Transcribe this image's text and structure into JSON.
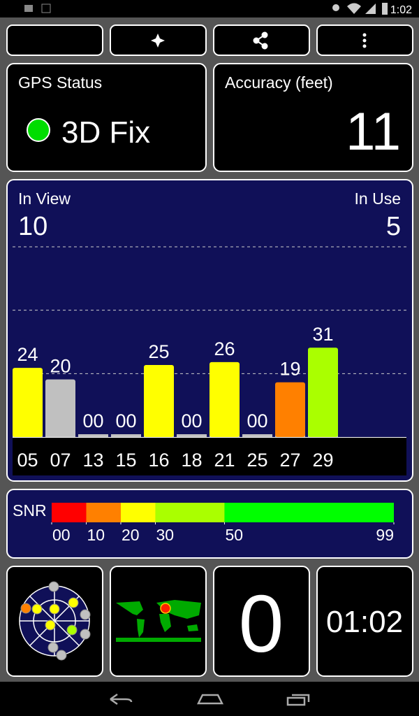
{
  "status_bar": {
    "time": "1:02"
  },
  "gps_status": {
    "title": "GPS Status",
    "value": "3D Fix"
  },
  "accuracy": {
    "title": "Accuracy (feet)",
    "value": "11"
  },
  "satellites": {
    "in_view_label": "In View",
    "in_view": "10",
    "in_use_label": "In Use",
    "in_use": "5",
    "ylim": [
      0,
      66
    ],
    "gridlines": [
      22,
      44,
      66
    ],
    "prns": [
      "05",
      "07",
      "13",
      "15",
      "16",
      "18",
      "21",
      "25",
      "27",
      "29"
    ],
    "values": [
      24,
      20,
      0,
      0,
      25,
      0,
      26,
      0,
      19,
      31
    ],
    "value_labels": [
      "24",
      "20",
      "00",
      "00",
      "25",
      "00",
      "26",
      "00",
      "19",
      "31"
    ],
    "colors": [
      "#ffff00",
      "#c0c0c0",
      "#c0c0c0",
      "#c0c0c0",
      "#ffff00",
      "#c0c0c0",
      "#ffff00",
      "#c0c0c0",
      "#ff8000",
      "#aaff00"
    ]
  },
  "snr_scale": {
    "title": "SNR",
    "ticks": [
      {
        "value": 0,
        "label": "00"
      },
      {
        "value": 10,
        "label": "10"
      },
      {
        "value": 20,
        "label": "20"
      },
      {
        "value": 30,
        "label": "30"
      },
      {
        "value": 50,
        "label": "50"
      },
      {
        "value": 99,
        "label": "99"
      }
    ],
    "colors": [
      "#ff0000",
      "#ff8000",
      "#ffff00",
      "#aaff00",
      "#00ff00"
    ]
  },
  "speed": {
    "value": "0"
  },
  "clock": {
    "value": "01:02"
  }
}
